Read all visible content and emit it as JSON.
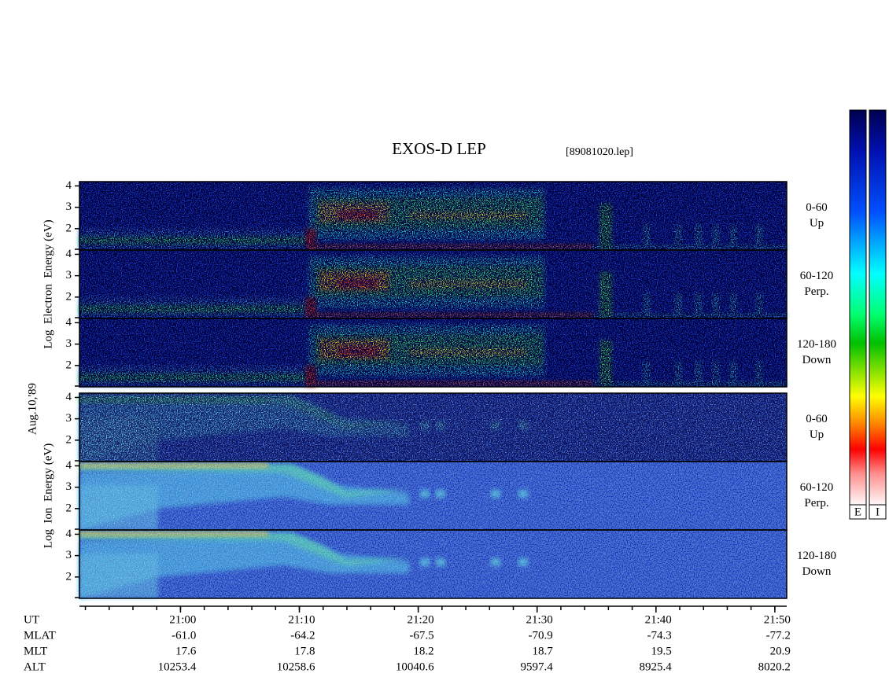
{
  "figure": {
    "title": "EXOS-D LEP",
    "file": "[89081020.lep]",
    "date": "Aug.10,'89",
    "color_bars": [
      "E",
      "I"
    ],
    "groups": [
      {
        "label": "Log  Electron  Energy (eV)",
        "panels": [
          {
            "range": "0-60",
            "direction": "Up"
          },
          {
            "range": "60-120",
            "direction": "Perp."
          },
          {
            "range": "120-180",
            "direction": "Down"
          }
        ]
      },
      {
        "label": "Log  Ion  Energy (eV)",
        "panels": [
          {
            "range": "0-60",
            "direction": "Up"
          },
          {
            "range": "60-120",
            "direction": "Perp."
          },
          {
            "range": "120-180",
            "direction": "Down"
          }
        ]
      }
    ],
    "ylim": [
      1,
      4.2
    ],
    "yticks": [
      2,
      3,
      4
    ],
    "xlim": [
      1251.5,
      1311
    ],
    "xticks": [
      {
        "value": 1260,
        "label": "21:00"
      },
      {
        "value": 1270,
        "label": "21:10"
      },
      {
        "value": 1280,
        "label": "21:20"
      },
      {
        "value": 1290,
        "label": "21:30"
      },
      {
        "value": 1300,
        "label": "21:40"
      },
      {
        "value": 1310,
        "label": "21:50"
      }
    ],
    "rows": [
      {
        "name": "UT"
      },
      {
        "name": "MLAT",
        "values": [
          "-61.0",
          "-64.2",
          "-67.5",
          "-70.9",
          "-74.3",
          "-77.2"
        ]
      },
      {
        "name": "MLT",
        "values": [
          "17.6",
          "17.8",
          "18.2",
          "18.7",
          "19.5",
          "20.9"
        ]
      },
      {
        "name": "ALT",
        "values": [
          "10253.4",
          "10258.6",
          "10040.6",
          "9597.4",
          "8925.4",
          "8020.2"
        ]
      }
    ]
  }
}
